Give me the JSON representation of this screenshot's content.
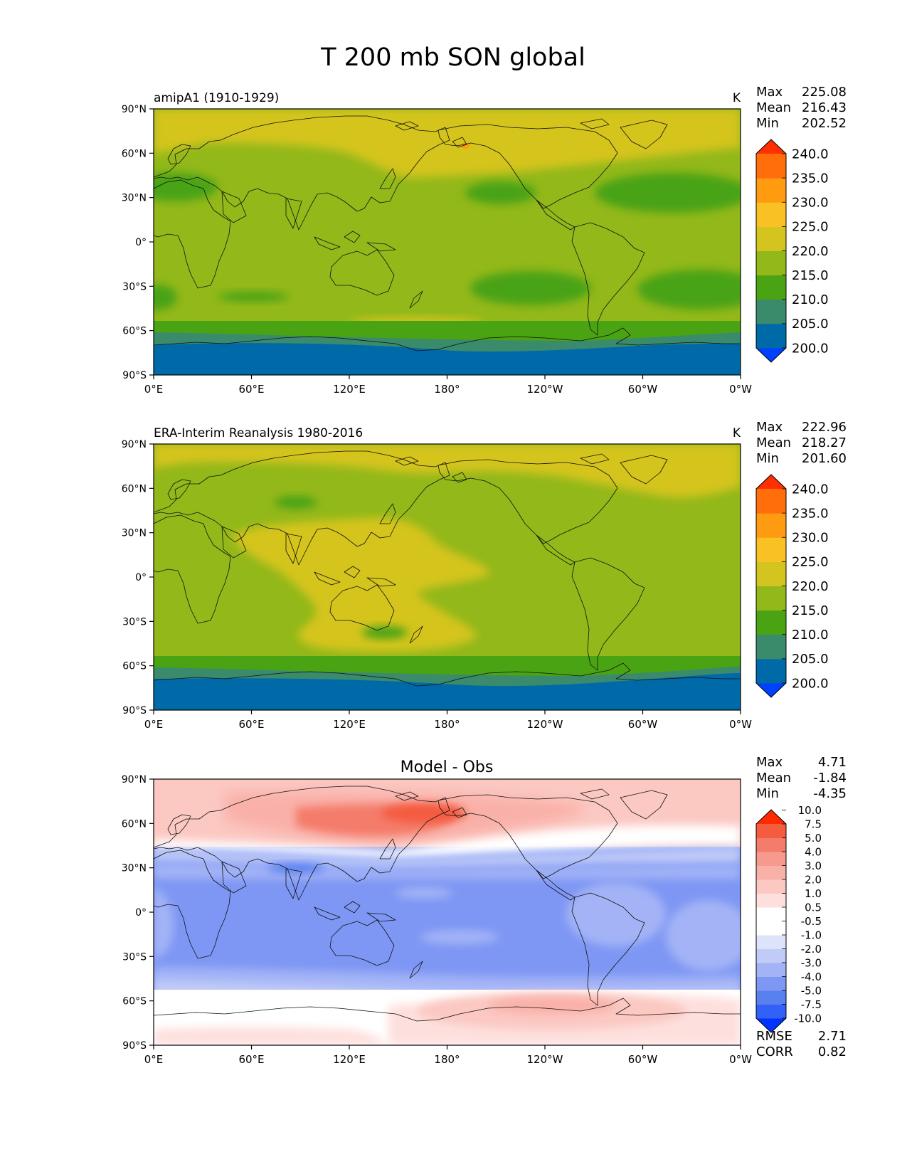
{
  "figure_title": "T 200 mb SON global",
  "lon_ticks": [
    "0°E",
    "60°E",
    "120°E",
    "180°",
    "120°W",
    "60°W",
    "0°W"
  ],
  "lat_ticks": [
    "90°N",
    "60°N",
    "30°N",
    "0°",
    "30°S",
    "60°S",
    "90°S"
  ],
  "chart_data": [
    {
      "type": "heatmap",
      "id": "model",
      "title": "amipA1 (1910-1929)",
      "units": "K",
      "stats": {
        "max": "225.08",
        "mean": "216.43",
        "min": "202.52"
      },
      "stat_labels": [
        "Max",
        "Mean",
        "Min"
      ],
      "xlim": [
        0,
        360
      ],
      "ylim": [
        -90,
        90
      ],
      "colorbar_levels": [
        "200.0",
        "205.0",
        "210.0",
        "215.0",
        "220.0",
        "225.0",
        "230.0",
        "235.0",
        "240.0"
      ],
      "colorbar_colors": [
        "#0040ff",
        "#0069a8",
        "#3a8a6c",
        "#4aa312",
        "#93b81a",
        "#d4c41f",
        "#fac124",
        "#ff9b10",
        "#ff6e0b",
        "#ff2f00"
      ]
    },
    {
      "type": "heatmap",
      "id": "obs",
      "title": "ERA-Interim Reanalysis 1980-2016",
      "units": "K",
      "stats": {
        "max": "222.96",
        "mean": "218.27",
        "min": "201.60"
      },
      "stat_labels": [
        "Max",
        "Mean",
        "Min"
      ],
      "xlim": [
        0,
        360
      ],
      "ylim": [
        -90,
        90
      ],
      "colorbar_levels": [
        "200.0",
        "205.0",
        "210.0",
        "215.0",
        "220.0",
        "225.0",
        "230.0",
        "235.0",
        "240.0"
      ],
      "colorbar_colors": [
        "#0040ff",
        "#0069a8",
        "#3a8a6c",
        "#4aa312",
        "#93b81a",
        "#d4c41f",
        "#fac124",
        "#ff9b10",
        "#ff6e0b",
        "#ff2f00"
      ]
    },
    {
      "type": "heatmap",
      "id": "diff",
      "title": "Model - Obs",
      "stats": {
        "max": "4.71",
        "mean": "-1.84",
        "min": "-4.35"
      },
      "stat_labels": [
        "Max",
        "Mean",
        "Min"
      ],
      "extra_stats": {
        "rmse": "2.71",
        "corr": "0.82"
      },
      "extra_labels": [
        "RMSE",
        "CORR"
      ],
      "xlim": [
        0,
        360
      ],
      "ylim": [
        -90,
        90
      ],
      "colorbar_levels": [
        "-10.0",
        "-7.5",
        "-5.0",
        "-4.0",
        "-3.0",
        "-2.0",
        "-1.0",
        "-0.5",
        "0.5",
        "1.0",
        "2.0",
        "3.0",
        "4.0",
        "5.0",
        "7.5",
        "10.0"
      ],
      "colorbar_colors": [
        "#0033ff",
        "#3261f7",
        "#5880ef",
        "#7e97f4",
        "#a3b3f6",
        "#c0cbf8",
        "#dde3fb",
        "#ffffff",
        "#ffffff",
        "#fde0dd",
        "#fbc8c2",
        "#f9b0a8",
        "#f69a8e",
        "#f47c6a",
        "#f45c40",
        "#ff2a00"
      ]
    }
  ]
}
